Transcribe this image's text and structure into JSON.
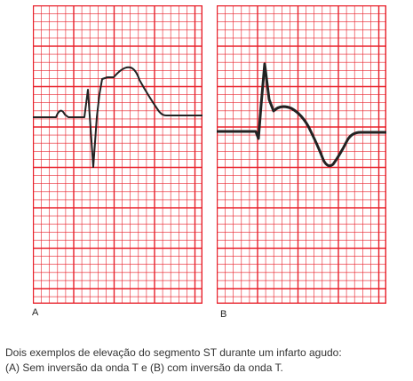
{
  "panels": [
    {
      "id": "A",
      "label": "A",
      "waveform": "st-elevation-without-t-inversion"
    },
    {
      "id": "B",
      "label": "B",
      "waveform": "st-elevation-with-t-inversion"
    }
  ],
  "grid_color": "#e8202a",
  "trace_color": "#222222",
  "caption": {
    "line1": "Dois exemplos de elevação do segmento ST durante um infarto agudo:",
    "line2": "(A) Sem inversão da onda T e (B) com inversão da onda T."
  }
}
